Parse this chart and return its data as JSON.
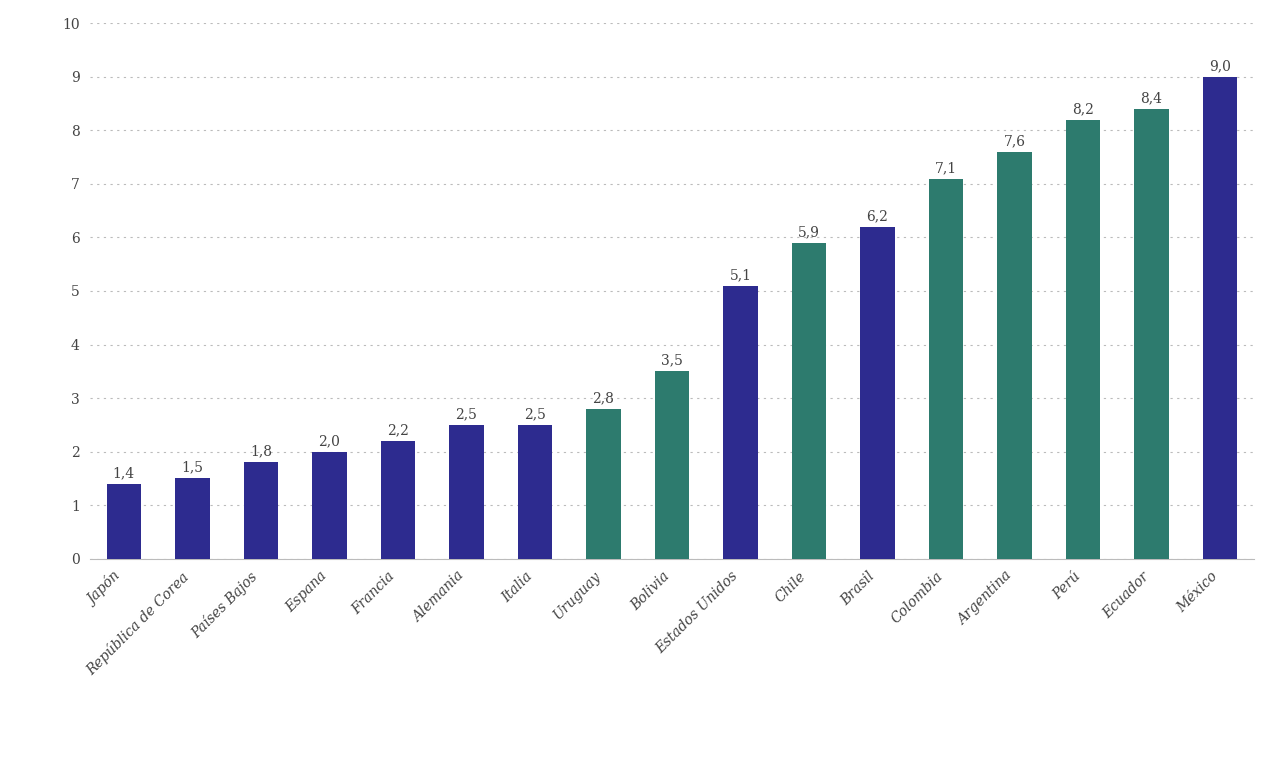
{
  "categories": [
    "Japón",
    "República de Corea",
    "Países Bajos",
    "Espana",
    "Francia",
    "Alemania",
    "Italia",
    "Uruguay",
    "Bolivia",
    "Estados Unidos",
    "Chile",
    "Brasil",
    "Colombia",
    "Argentina",
    "Perú",
    "Ecuador",
    "México"
  ],
  "values": [
    1.4,
    1.5,
    1.8,
    2.0,
    2.2,
    2.5,
    2.5,
    2.8,
    3.5,
    5.1,
    5.9,
    6.2,
    7.1,
    7.6,
    8.2,
    8.4,
    9.0
  ],
  "colors": [
    "#2D2B8F",
    "#2D2B8F",
    "#2D2B8F",
    "#2D2B8F",
    "#2D2B8F",
    "#2D2B8F",
    "#2D2B8F",
    "#2D7B6E",
    "#2D7B6E",
    "#2D2B8F",
    "#2D7B6E",
    "#2D2B8F",
    "#2D7B6E",
    "#2D7B6E",
    "#2D7B6E",
    "#2D7B6E",
    "#2D2B8F"
  ],
  "ylim": [
    0,
    10
  ],
  "yticks": [
    0,
    1,
    2,
    3,
    4,
    5,
    6,
    7,
    8,
    9,
    10
  ],
  "background_color": "#FFFFFF",
  "grid_color": "#BBBBBB",
  "bar_width": 0.5,
  "tick_fontsize": 10,
  "value_fontsize": 10
}
